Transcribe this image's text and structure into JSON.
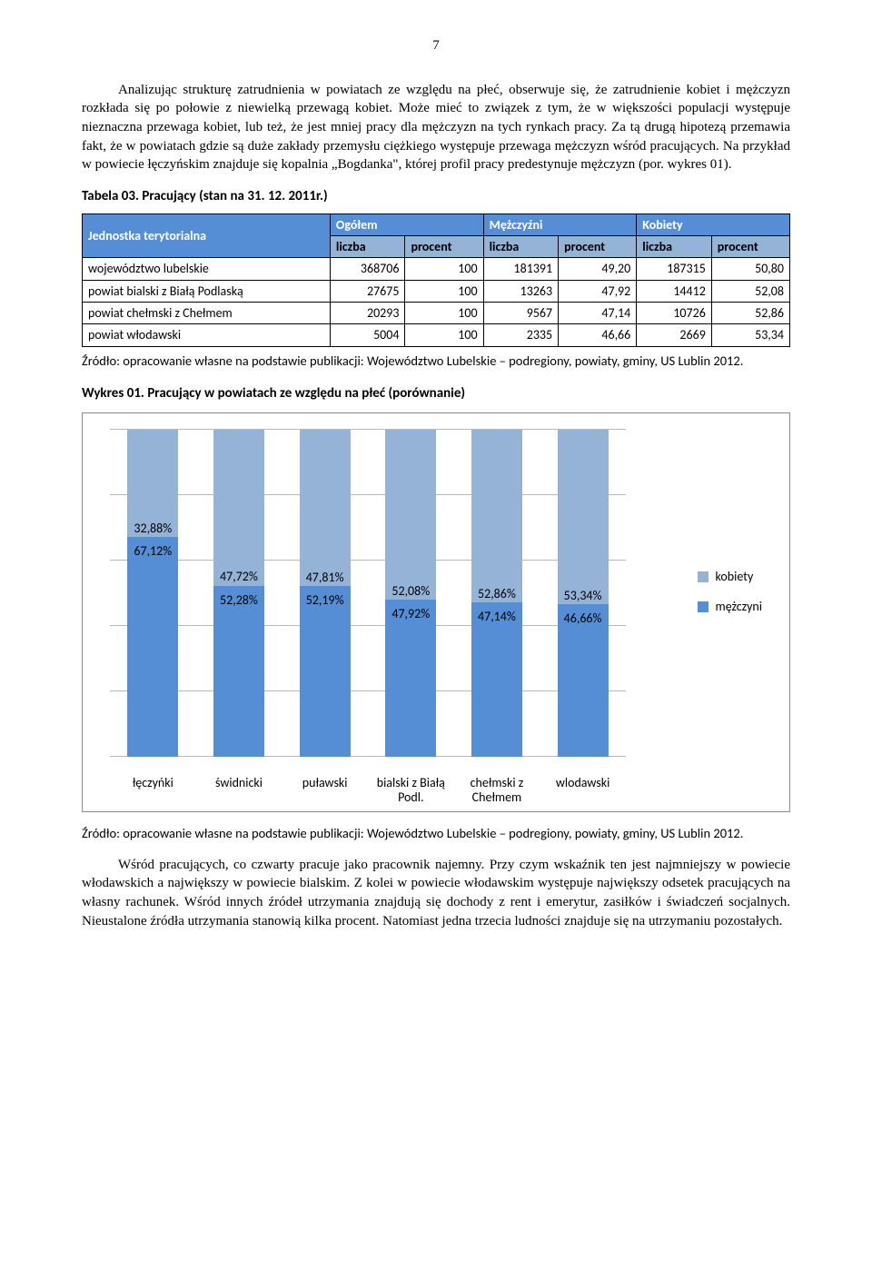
{
  "page_number": "7",
  "paragraphs": {
    "p1": "Analizując strukturę zatrudnienia w powiatach ze względu na płeć, obserwuje się, że zatrudnienie kobiet i mężczyzn rozkłada się po połowie z niewielką przewagą kobiet. Może mieć to związek z tym, że w większości populacji występuje nieznaczna przewaga kobiet, lub też, że jest mniej pracy dla mężczyzn na tych rynkach pracy. Za tą drugą hipotezą przemawia fakt, że w powiatach gdzie są duże zakłady przemysłu ciężkiego występuje przewaga mężczyzn wśród pracujących. Na przykład w powiecie łęczyńskim znajduje się kopalnia „Bogdanka\", której profil pracy predestynuje mężczyzn (por. wykres 01).",
    "p2": "Wśród pracujących, co czwarty pracuje jako pracownik najemny. Przy czym wskaźnik ten jest  najmniejszy w powiecie włodawskich a największy w powiecie bialskim. Z kolei w powiecie włodawskim występuje największy odsetek pracujących na własny rachunek. Wśród innych źródeł utrzymania znajdują się dochody z rent i emerytur, zasiłków i świadczeń socjalnych. Nieustalone źródła utrzymania stanowią kilka procent. Natomiast jedna trzecia ludności znajduje się na utrzymaniu pozostałych."
  },
  "table": {
    "title": "Tabela 03. Pracujący (stan na 31. 12. 2011r.)",
    "header_bg": "#558ed5",
    "header2_bg": "#95b3d7",
    "row_label": "Jednostka terytorialna",
    "groups": [
      "Ogółem",
      "Mężczyźni",
      "Kobiety"
    ],
    "subcols": [
      "liczba",
      "procent",
      "liczba",
      "procent",
      "liczba",
      "procent"
    ],
    "rows": [
      {
        "label": "województwo lubelskie",
        "cells": [
          "368706",
          "100",
          "181391",
          "49,20",
          "187315",
          "50,80"
        ]
      },
      {
        "label": "powiat bialski z Białą Podlaską",
        "cells": [
          "27675",
          "100",
          "13263",
          "47,92",
          "14412",
          "52,08"
        ]
      },
      {
        "label": "powiat chełmski z Chełmem",
        "cells": [
          "20293",
          "100",
          "9567",
          "47,14",
          "10726",
          "52,86"
        ]
      },
      {
        "label": "powiat włodawski",
        "cells": [
          "5004",
          "100",
          "2335",
          "46,66",
          "2669",
          "53,34"
        ]
      }
    ],
    "source": "Źródło: opracowanie własne na podstawie publikacji: Województwo Lubelskie – podregiony, powiaty, gminy, US Lublin 2012."
  },
  "chart": {
    "title": "Wykres 01. Pracujący w powiatach ze względu na płeć (porównanie)",
    "type": "stacked-bar",
    "color_men": "#558ed5",
    "color_women": "#95b3d7",
    "grid_color": "#b9b9b9",
    "background_color": "#ffffff",
    "gridline_count": 5,
    "categories": [
      "łęczyńki",
      "świdnicki",
      "puławski",
      "bialski z Białą Podl.",
      "chełmski z Chełmem",
      "wlodawski"
    ],
    "bars": [
      {
        "men": 67.12,
        "women": 32.88,
        "men_label": "67,12%",
        "women_label": "32,88%"
      },
      {
        "men": 52.28,
        "women": 47.72,
        "men_label": "52,28%",
        "women_label": "47,72%"
      },
      {
        "men": 52.19,
        "women": 47.81,
        "men_label": "52,19%",
        "women_label": "47,81%"
      },
      {
        "men": 47.92,
        "women": 52.08,
        "men_label": "47,92%",
        "women_label": "52,08%"
      },
      {
        "men": 47.14,
        "women": 52.86,
        "men_label": "47,14%",
        "women_label": "52,86%"
      },
      {
        "men": 46.66,
        "women": 53.34,
        "men_label": "46,66%",
        "women_label": "53,34%"
      }
    ],
    "legend": [
      {
        "label": "kobiety",
        "color": "#95b3d7"
      },
      {
        "label": "mężczyni",
        "color": "#558ed5"
      }
    ],
    "source": "Źródło: opracowanie własne na podstawie publikacji: Województwo Lubelskie – podregiony, powiaty, gminy, US Lublin 2012."
  }
}
